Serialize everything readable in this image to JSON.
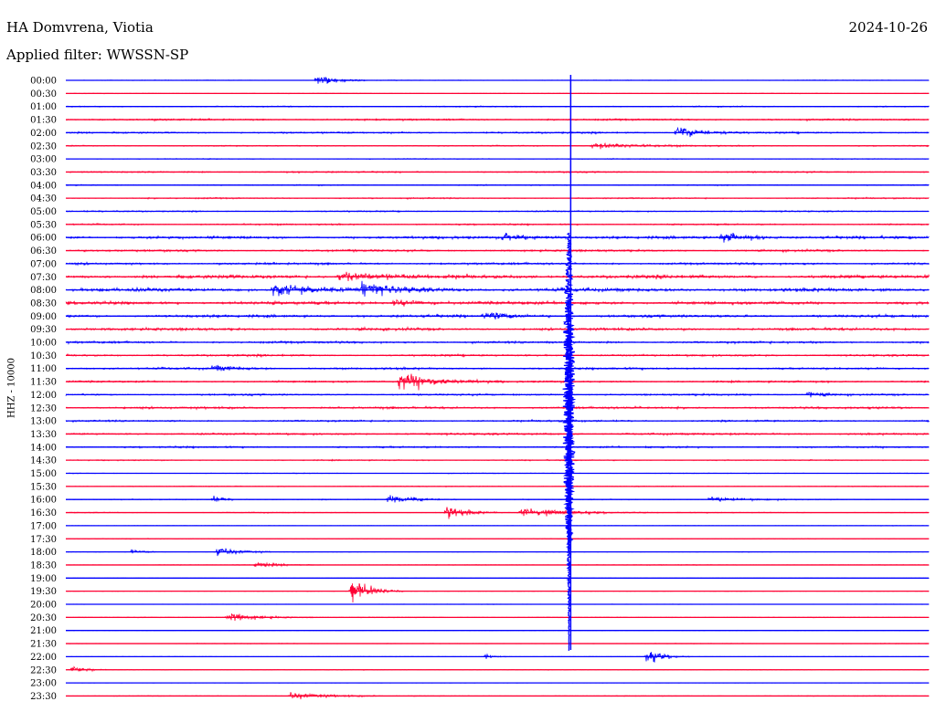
{
  "header": {
    "station": "HA Domvrena, Viotia",
    "date": "2024-10-26",
    "filter": "Applied filter: WWSSN-SP"
  },
  "chart_data": {
    "type": "line",
    "title": "HA Domvrena, Viotia",
    "ylabel": "HHZ - 10000",
    "row_labels": [
      "00:00",
      "00:30",
      "01:00",
      "01:30",
      "02:00",
      "02:30",
      "03:00",
      "03:30",
      "04:00",
      "04:30",
      "05:00",
      "05:30",
      "06:00",
      "06:30",
      "07:00",
      "07:30",
      "08:00",
      "08:30",
      "09:00",
      "09:30",
      "10:00",
      "10:30",
      "11:00",
      "11:30",
      "12:00",
      "12:30",
      "13:00",
      "13:30",
      "14:00",
      "14:30",
      "15:00",
      "15:30",
      "16:00",
      "16:30",
      "17:00",
      "17:30",
      "18:00",
      "18:30",
      "19:00",
      "19:30",
      "20:00",
      "20:30",
      "21:00",
      "21:30",
      "22:00",
      "22:30",
      "23:00",
      "23:30"
    ],
    "row_colors": [
      "#0000ff",
      "#ff0033"
    ],
    "noise_levels": [
      0.3,
      0.25,
      0.5,
      0.8,
      0.8,
      0.5,
      0.4,
      0.6,
      0.5,
      0.6,
      0.6,
      0.7,
      1.2,
      0.9,
      1.0,
      1.6,
      1.6,
      1.4,
      1.2,
      1.2,
      1.0,
      0.9,
      0.9,
      0.8,
      0.8,
      1.0,
      0.8,
      0.9,
      0.8,
      0.5,
      0.3,
      0.4,
      0.4,
      0.4,
      0.2,
      0.3,
      0.3,
      0.3,
      0.2,
      0.2,
      0.2,
      0.3,
      0.2,
      0.3,
      0.2,
      0.3,
      0.2,
      0.3
    ],
    "large_event": {
      "start_row": 12,
      "end_row": 44,
      "row_fraction": 0.583
    },
    "events": [
      {
        "row": 0,
        "minute": 8.7,
        "amp": 8,
        "dur": 0.6
      },
      {
        "row": 4,
        "minute": 21.2,
        "amp": 9,
        "dur": 0.8
      },
      {
        "row": 5,
        "minute": 18.3,
        "amp": 4,
        "dur": 1.5
      },
      {
        "row": 12,
        "minute": 15.2,
        "amp": 7,
        "dur": 0.8
      },
      {
        "row": 12,
        "minute": 22.8,
        "amp": 6,
        "dur": 0.8
      },
      {
        "row": 15,
        "minute": 9.5,
        "amp": 5,
        "dur": 1.5
      },
      {
        "row": 16,
        "minute": 7.2,
        "amp": 7,
        "dur": 1.2
      },
      {
        "row": 16,
        "minute": 10.3,
        "amp": 7,
        "dur": 1.2
      },
      {
        "row": 17,
        "minute": 11.4,
        "amp": 5,
        "dur": 0.8
      },
      {
        "row": 18,
        "minute": 14.6,
        "amp": 5,
        "dur": 0.8
      },
      {
        "row": 22,
        "minute": 5.1,
        "amp": 4,
        "dur": 0.8
      },
      {
        "row": 23,
        "minute": 11.6,
        "amp": 12,
        "dur": 1.2
      },
      {
        "row": 24,
        "minute": 25.8,
        "amp": 5,
        "dur": 0.5
      },
      {
        "row": 32,
        "minute": 11.2,
        "amp": 7,
        "dur": 0.8
      },
      {
        "row": 32,
        "minute": 5.1,
        "amp": 4,
        "dur": 0.4
      },
      {
        "row": 32,
        "minute": 22.4,
        "amp": 4,
        "dur": 1.0
      },
      {
        "row": 33,
        "minute": 13.2,
        "amp": 9,
        "dur": 0.6
      },
      {
        "row": 33,
        "minute": 15.8,
        "amp": 6,
        "dur": 1.5
      },
      {
        "row": 36,
        "minute": 5.3,
        "amp": 8,
        "dur": 0.6
      },
      {
        "row": 36,
        "minute": 2.3,
        "amp": 3,
        "dur": 0.4
      },
      {
        "row": 37,
        "minute": 6.6,
        "amp": 4,
        "dur": 0.8
      },
      {
        "row": 39,
        "minute": 9.9,
        "amp": 18,
        "dur": 0.6
      },
      {
        "row": 41,
        "minute": 5.6,
        "amp": 6,
        "dur": 1.0
      },
      {
        "row": 44,
        "minute": 14.6,
        "amp": 4,
        "dur": 0.3
      },
      {
        "row": 44,
        "minute": 20.2,
        "amp": 10,
        "dur": 0.5
      },
      {
        "row": 45,
        "minute": 0.2,
        "amp": 6,
        "dur": 0.4
      },
      {
        "row": 47,
        "minute": 7.8,
        "amp": 6,
        "dur": 1.0
      }
    ]
  }
}
